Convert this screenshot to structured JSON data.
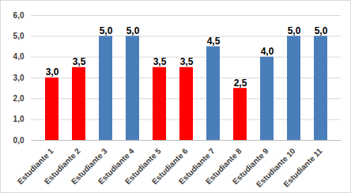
{
  "chart_data": {
    "type": "bar",
    "categories": [
      "Estudiante 1",
      "Estudiante 2",
      "Estudiante 3",
      "Estudiante 4",
      "Estudiante 5",
      "Estudiante 6",
      "Estudiante 7",
      "Estudiante 8",
      "Estudiante 9",
      "Estudiante 10",
      "Estudiante 11"
    ],
    "values": [
      3.0,
      3.5,
      5.0,
      5.0,
      3.5,
      3.5,
      4.5,
      2.5,
      4.0,
      5.0,
      5.0
    ],
    "value_labels": [
      "3,0",
      "3,5",
      "5,0",
      "5,0",
      "3,5",
      "3,5",
      "4,5",
      "2,5",
      "4,0",
      "5,0",
      "5,0"
    ],
    "colors": [
      "#ff0000",
      "#ff0000",
      "#4a7ebb",
      "#4a7ebb",
      "#ff0000",
      "#ff0000",
      "#4a7ebb",
      "#ff0000",
      "#4a7ebb",
      "#4a7ebb",
      "#4a7ebb"
    ],
    "ylim": [
      0,
      6
    ],
    "yticks": [
      {
        "value": 0,
        "label": "0,0"
      },
      {
        "value": 1,
        "label": "1,0"
      },
      {
        "value": 2,
        "label": "2,0"
      },
      {
        "value": 3,
        "label": "3,0"
      },
      {
        "value": 4,
        "label": "4,0"
      },
      {
        "value": 5,
        "label": "5,0"
      },
      {
        "value": 6,
        "label": "6,0"
      }
    ],
    "grid": true,
    "data_labels": true
  }
}
